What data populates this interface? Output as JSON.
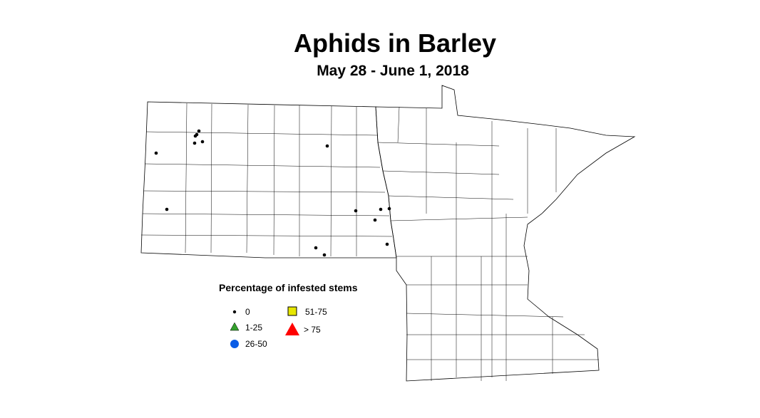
{
  "title": "Aphids in Barley",
  "subtitle": "May 28 - June 1, 2018",
  "legend": {
    "title": "Percentage of infested stems",
    "items": [
      {
        "label": "0",
        "symbol": "small-dot",
        "color": "#000000"
      },
      {
        "label": "1-25",
        "symbol": "triangle",
        "color": "#33a02c"
      },
      {
        "label": "26-50",
        "symbol": "circle",
        "color": "#0a5ce6"
      },
      {
        "label": "51-75",
        "symbol": "square",
        "color": "#e6e600"
      },
      {
        "label": "> 75",
        "symbol": "triangle",
        "color": "#ff0000"
      }
    ]
  },
  "observations": {
    "category": "0",
    "count": 15
  }
}
